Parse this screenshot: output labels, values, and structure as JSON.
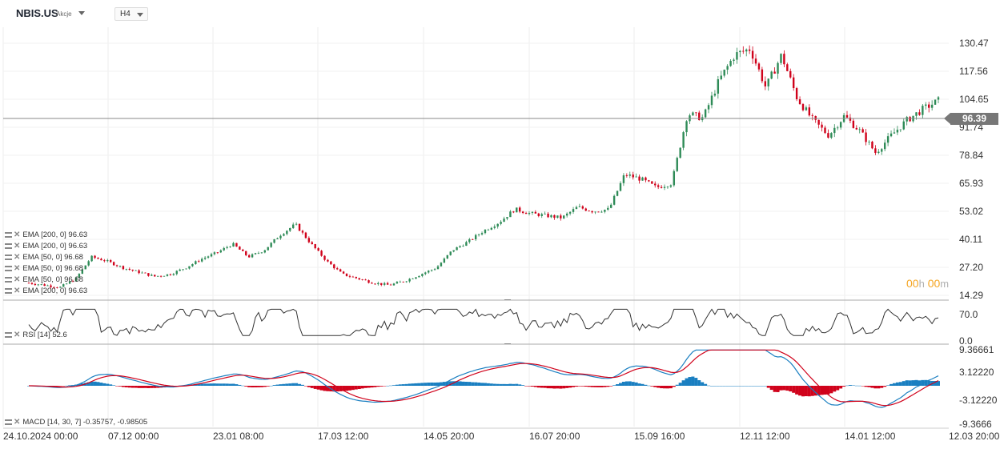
{
  "toolbar": {
    "symbol": "NBIS.US",
    "symbol_type": "Akcje",
    "timeframe": "H4"
  },
  "price_tag": "96.39",
  "timer": {
    "h": "00",
    "h_unit": "h",
    "m": "00",
    "m_unit": "m"
  },
  "indicators": [
    {
      "label": "EMA [200, 0] 96.63"
    },
    {
      "label": "EMA [200, 0] 96.63"
    },
    {
      "label": "EMA [50, 0] 96.68"
    },
    {
      "label": "EMA [50, 0] 96.68"
    },
    {
      "label": "EMA [50, 0] 96.68"
    },
    {
      "label": "EMA [200, 0] 96.63"
    }
  ],
  "rsi_label": "RSI [14] 52.6",
  "macd_label": "MACD [14, 30, 7] -0.35757, -0.98505",
  "colors": {
    "up": "#2e8b57",
    "down": "#d0021b",
    "line": "#333333",
    "macd_pos": "#1a7fc1",
    "macd_neg": "#d0021b",
    "macd_signal": "#d0021b",
    "macd_line": "#1a7fc1",
    "timer": "#f5a623"
  },
  "chart_data": [
    {
      "type": "candlestick",
      "price_ticks": [
        130.47,
        117.56,
        104.65,
        96.39,
        91.74,
        78.84,
        65.93,
        53.02,
        40.11,
        27.2,
        14.29
      ],
      "ylim": [
        14.29,
        136
      ],
      "time_labels": [
        "24.10.2024  00:00",
        "07.12  00:00",
        "23.01  08:00",
        "17.03  12:00",
        "14.05  20:00",
        "16.07  20:00",
        "15.09  16:00",
        "12.11  12:00",
        "14.01  12:00",
        "12.03  20:00"
      ],
      "current_price": 96.39,
      "series": [
        {
          "name": "close_approx",
          "x": [
            0,
            2,
            4,
            6,
            8,
            10,
            12,
            14,
            16,
            18,
            20,
            22,
            24,
            26,
            28,
            30,
            32,
            34,
            36,
            38,
            40,
            42,
            44,
            46,
            48,
            50,
            52,
            54,
            56,
            58,
            60,
            62,
            64,
            66,
            68,
            70,
            72,
            74,
            76,
            78,
            80,
            82,
            84,
            86,
            88,
            90,
            92,
            94,
            96,
            98,
            100,
            102,
            104,
            106,
            108,
            110,
            112,
            114,
            116
          ],
          "values": [
            20,
            19,
            18,
            22,
            32,
            30,
            27,
            25,
            23,
            24,
            27,
            31,
            34,
            38,
            32,
            35,
            42,
            47,
            38,
            30,
            24,
            22,
            20,
            19,
            21,
            24,
            27,
            35,
            39,
            44,
            48,
            54,
            52,
            51,
            50,
            55,
            53,
            54,
            70,
            68,
            64,
            66,
            98,
            96,
            113,
            125,
            128,
            110,
            125,
            105,
            95,
            88,
            97,
            90,
            80,
            88,
            95,
            100,
            104
          ]
        }
      ]
    },
    {
      "type": "line",
      "title": "RSI [14]",
      "ticks": [
        70.0,
        0.0
      ],
      "ylim": [
        0,
        100
      ],
      "series": [
        {
          "name": "RSI",
          "last": 52.6
        }
      ]
    },
    {
      "type": "bar",
      "title": "MACD [14, 30, 7]",
      "ticks": [
        9.36661,
        3.1222,
        -3.1222,
        -9.3666
      ],
      "ylim": [
        -9.3666,
        9.36661
      ],
      "series": [
        {
          "name": "MACD",
          "last": -0.35757
        },
        {
          "name": "Signal",
          "last": -0.98505
        }
      ]
    }
  ]
}
